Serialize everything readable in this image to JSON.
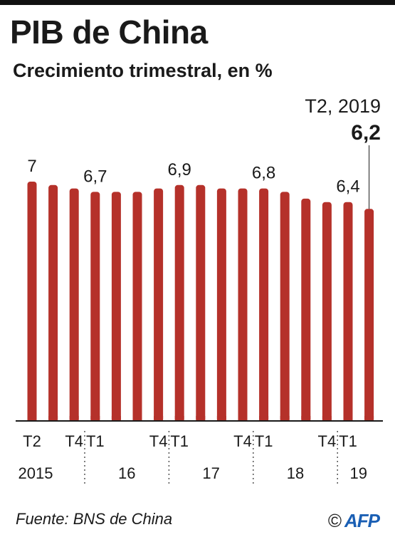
{
  "title": "PIB de China",
  "subtitle": "Crecimiento trimestral, en %",
  "callout": {
    "period": "T2, 2019",
    "value": "6,2"
  },
  "source": "Fuente: BNS de China",
  "logo": {
    "copyright": "©",
    "brand": "AFP"
  },
  "colors": {
    "bar": "#b5312a",
    "axis": "#1a1a1a",
    "text": "#1a1a1a"
  },
  "chart_data": {
    "type": "bar",
    "categories": [
      "T2 2015",
      "T3 2015",
      "T4 2015",
      "T1 2016",
      "T2 2016",
      "T3 2016",
      "T4 2016",
      "T1 2017",
      "T2 2017",
      "T3 2017",
      "T4 2017",
      "T1 2018",
      "T2 2018",
      "T3 2018",
      "T4 2018",
      "T1 2019",
      "T2 2019"
    ],
    "values": [
      7.0,
      6.9,
      6.8,
      6.7,
      6.7,
      6.7,
      6.8,
      6.9,
      6.9,
      6.8,
      6.8,
      6.8,
      6.7,
      6.5,
      6.4,
      6.4,
      6.2
    ],
    "value_labels": [
      "7",
      "",
      "",
      "6,7",
      "",
      "",
      "",
      "6,9",
      "",
      "",
      "",
      "6,8",
      "",
      "",
      "",
      "6,4",
      ""
    ],
    "tick_labels": [
      "T2",
      "",
      "T4",
      "T1",
      "",
      "",
      "T4",
      "T1",
      "",
      "",
      "T4",
      "T1",
      "",
      "",
      "T4",
      "T1",
      ""
    ],
    "year_labels": [
      "2015",
      "16",
      "17",
      "18",
      "19"
    ],
    "year_separators_after_index": [
      2,
      6,
      10,
      14
    ],
    "ylim": [
      0,
      7.4
    ],
    "grid": false
  }
}
